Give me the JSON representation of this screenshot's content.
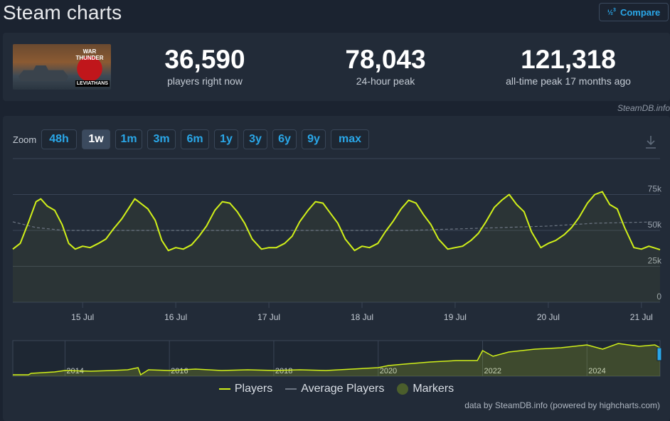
{
  "page": {
    "title": "Steam charts",
    "compare_label": "Compare",
    "compare_icon": "fraction-icon"
  },
  "game": {
    "art_title": "WAR THUNDER",
    "art_subtitle": "LEVIATHANS"
  },
  "stats": [
    {
      "value": "36,590",
      "label": "players right now"
    },
    {
      "value": "78,043",
      "label": "24-hour peak"
    },
    {
      "value": "121,318",
      "label": "all-time peak 17 months ago"
    }
  ],
  "credit_top": "SteamDB.info",
  "zoom": {
    "label": "Zoom",
    "options": [
      "48h",
      "1w",
      "1m",
      "3m",
      "6m",
      "1y",
      "3y",
      "6y",
      "9y",
      "max"
    ],
    "active": "1w"
  },
  "legend": {
    "players": "Players",
    "average": "Average Players",
    "markers": "Markers"
  },
  "credit_bottom": "data by SteamDB.info (powered by highcharts.com)",
  "colors": {
    "players": "#d1f019",
    "average": "#6d7683",
    "markers": "#4b5e2c",
    "accent": "#2aa7e8",
    "background": "#222b38"
  },
  "chart_data": [
    {
      "type": "line",
      "x_tick_labels": [
        "15 Jul",
        "16 Jul",
        "17 Jul",
        "18 Jul",
        "19 Jul",
        "20 Jul",
        "21 Jul"
      ],
      "y_tick_labels": [
        "0",
        "25k",
        "50k",
        "75k"
      ],
      "ylim": [
        0,
        100000
      ],
      "xlim_days": [
        14.25,
        21.2
      ],
      "tick_days": [
        15,
        16,
        17,
        18,
        19,
        20,
        21
      ],
      "grid": true,
      "series": [
        {
          "name": "Players",
          "points": [
            [
              14.25,
              37000
            ],
            [
              14.33,
              41000
            ],
            [
              14.42,
              56000
            ],
            [
              14.5,
              70000
            ],
            [
              14.55,
              72000
            ],
            [
              14.62,
              67000
            ],
            [
              14.7,
              64000
            ],
            [
              14.78,
              54000
            ],
            [
              14.85,
              41000
            ],
            [
              14.92,
              37000
            ],
            [
              15.0,
              39000
            ],
            [
              15.08,
              38000
            ],
            [
              15.17,
              41000
            ],
            [
              15.25,
              44000
            ],
            [
              15.33,
              51000
            ],
            [
              15.42,
              58000
            ],
            [
              15.5,
              66000
            ],
            [
              15.56,
              72000
            ],
            [
              15.62,
              69000
            ],
            [
              15.7,
              65000
            ],
            [
              15.78,
              57000
            ],
            [
              15.85,
              43000
            ],
            [
              15.92,
              36000
            ],
            [
              16.0,
              38000
            ],
            [
              16.08,
              37000
            ],
            [
              16.17,
              40000
            ],
            [
              16.25,
              46000
            ],
            [
              16.33,
              53000
            ],
            [
              16.42,
              64000
            ],
            [
              16.5,
              70000
            ],
            [
              16.58,
              69000
            ],
            [
              16.66,
              63000
            ],
            [
              16.74,
              55000
            ],
            [
              16.82,
              44000
            ],
            [
              16.92,
              37000
            ],
            [
              17.0,
              38000
            ],
            [
              17.08,
              38000
            ],
            [
              17.17,
              41000
            ],
            [
              17.25,
              46000
            ],
            [
              17.33,
              56000
            ],
            [
              17.42,
              64000
            ],
            [
              17.5,
              70000
            ],
            [
              17.58,
              69000
            ],
            [
              17.66,
              62000
            ],
            [
              17.74,
              55000
            ],
            [
              17.82,
              44000
            ],
            [
              17.92,
              36000
            ],
            [
              18.0,
              39000
            ],
            [
              18.08,
              38000
            ],
            [
              18.17,
              41000
            ],
            [
              18.25,
              49000
            ],
            [
              18.33,
              56000
            ],
            [
              18.42,
              65000
            ],
            [
              18.5,
              71000
            ],
            [
              18.58,
              69000
            ],
            [
              18.66,
              61000
            ],
            [
              18.74,
              54000
            ],
            [
              18.82,
              44000
            ],
            [
              18.92,
              37000
            ],
            [
              19.0,
              38000
            ],
            [
              19.08,
              39000
            ],
            [
              19.17,
              43000
            ],
            [
              19.25,
              48000
            ],
            [
              19.33,
              56000
            ],
            [
              19.42,
              66000
            ],
            [
              19.5,
              71000
            ],
            [
              19.58,
              75000
            ],
            [
              19.66,
              68000
            ],
            [
              19.74,
              63000
            ],
            [
              19.82,
              49000
            ],
            [
              19.92,
              38000
            ],
            [
              20.0,
              41000
            ],
            [
              20.08,
              43000
            ],
            [
              20.17,
              47000
            ],
            [
              20.25,
              52000
            ],
            [
              20.33,
              59000
            ],
            [
              20.42,
              69000
            ],
            [
              20.5,
              75000
            ],
            [
              20.58,
              77000
            ],
            [
              20.66,
              68000
            ],
            [
              20.74,
              65000
            ],
            [
              20.82,
              52000
            ],
            [
              20.92,
              38000
            ],
            [
              21.0,
              37000
            ],
            [
              21.08,
              39000
            ],
            [
              21.2,
              36590
            ]
          ]
        },
        {
          "name": "Average Players",
          "points": [
            [
              14.25,
              56000
            ],
            [
              14.5,
              52000
            ],
            [
              14.8,
              50000
            ],
            [
              15.5,
              50000
            ],
            [
              16.5,
              50000
            ],
            [
              17.5,
              50000
            ],
            [
              18.5,
              50000
            ],
            [
              19.0,
              51000
            ],
            [
              19.5,
              52000
            ],
            [
              20.0,
              53000
            ],
            [
              20.5,
              55000
            ],
            [
              21.2,
              56000
            ]
          ]
        }
      ]
    },
    {
      "type": "area",
      "x_tick_labels": [
        "2014",
        "2016",
        "2018",
        "2020",
        "2022",
        "2024"
      ],
      "xlim": [
        2013.0,
        2025.4
      ],
      "tick_years": [
        2014,
        2016,
        2018,
        2020,
        2022,
        2024
      ],
      "series": [
        {
          "name": "Players",
          "points": [
            [
              2013.0,
              2000
            ],
            [
              2013.3,
              2000
            ],
            [
              2013.35,
              4000
            ],
            [
              2013.8,
              6000
            ],
            [
              2014.0,
              8000
            ],
            [
              2014.5,
              7000
            ],
            [
              2014.9,
              8000
            ],
            [
              2015.2,
              9000
            ],
            [
              2015.4,
              12000
            ],
            [
              2015.45,
              2000
            ],
            [
              2015.6,
              9000
            ],
            [
              2016.0,
              8000
            ],
            [
              2016.5,
              10000
            ],
            [
              2017.0,
              8000
            ],
            [
              2017.5,
              9000
            ],
            [
              2018.0,
              8000
            ],
            [
              2018.5,
              9000
            ],
            [
              2019.0,
              8000
            ],
            [
              2019.5,
              10000
            ],
            [
              2020.0,
              12000
            ],
            [
              2020.2,
              15000
            ],
            [
              2020.5,
              17000
            ],
            [
              2021.0,
              20000
            ],
            [
              2021.5,
              22000
            ],
            [
              2021.9,
              22000
            ],
            [
              2022.0,
              36000
            ],
            [
              2022.2,
              28000
            ],
            [
              2022.5,
              34000
            ],
            [
              2023.0,
              38000
            ],
            [
              2023.5,
              40000
            ],
            [
              2024.0,
              44000
            ],
            [
              2024.3,
              38000
            ],
            [
              2024.6,
              46000
            ],
            [
              2025.0,
              42000
            ],
            [
              2025.3,
              44000
            ],
            [
              2025.4,
              40000
            ]
          ]
        }
      ]
    }
  ]
}
